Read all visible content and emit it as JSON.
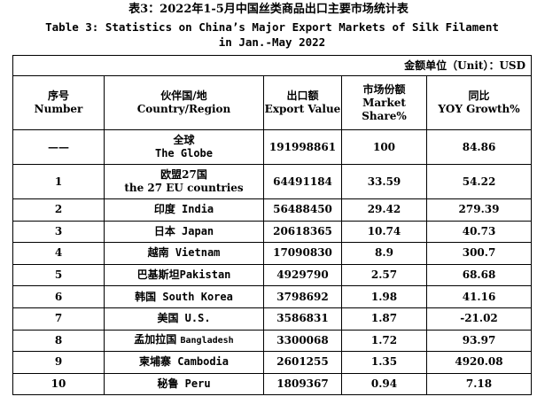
{
  "title_cn": "表3：2022年1-5月中国丝类商品出口主要市场统计表",
  "title_en_line1": "Table 3: Statistics on China’s Major Export Markets of Silk Filament",
  "title_en_line2": "in Jan.-May 2022",
  "unit_label": "金额单位（Unit）：USD",
  "headers": {
    "col1_cn": "序号",
    "col1_en": "Number",
    "col2_cn": "伙伴国/地",
    "col2_en": "Country/Region",
    "col3_cn": "出口额",
    "col3_en": "Export Value",
    "col4_cn": "市场份额",
    "col4_en": "Market Share%",
    "col5_cn": "同比",
    "col5_en": "YOY Growth%"
  },
  "rows": [
    {
      "num": "——",
      "region_cn": "全球",
      "region_en": "The Globe",
      "value": "191998861",
      "share": "100",
      "growth": "84.86"
    },
    {
      "num": "1",
      "region_cn": "欧盟27国",
      "region_en": "the 27 EU countries",
      "value": "64491184",
      "share": "33.59",
      "growth": "54.22"
    },
    {
      "num": "2",
      "region": "印度 India",
      "value": "56488450",
      "share": "29.42",
      "growth": "279.39"
    },
    {
      "num": "3",
      "region": "日本 Japan",
      "value": "20618365",
      "share": "10.74",
      "growth": "40.73"
    },
    {
      "num": "4",
      "region": "越南 Vietnam",
      "value": "17090830",
      "share": "8.9",
      "growth": "300.7"
    },
    {
      "num": "5",
      "region": "巴基斯坦Pakistan",
      "value": "4929790",
      "share": "2.57",
      "growth": "68.68"
    },
    {
      "num": "6",
      "region": "韩国 South Korea",
      "value": "3798692",
      "share": "1.98",
      "growth": "41.16"
    },
    {
      "num": "7",
      "region": "美国 U.S.",
      "value": "3586831",
      "share": "1.87",
      "growth": "-21.02"
    },
    {
      "num": "8",
      "region_cn": "孟加拉国",
      "region_en": "Bangladesh",
      "value": "3300068",
      "share": "1.72",
      "growth": "93.97"
    },
    {
      "num": "9",
      "region": "柬埔寨 Cambodia",
      "value": "2601255",
      "share": "1.35",
      "growth": "4920.08"
    },
    {
      "num": "10",
      "region": "秘鲁 Peru",
      "value": "1809367",
      "share": "0.94",
      "growth": "7.18"
    }
  ]
}
